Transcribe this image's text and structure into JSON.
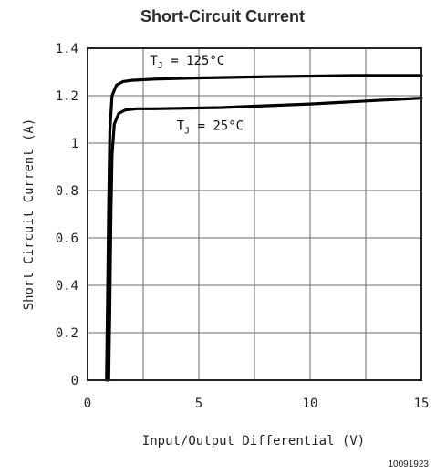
{
  "chart_data": {
    "type": "line",
    "title": "Short-Circuit Current",
    "xlabel": "Input/Output Differential (V)",
    "ylabel": "Short Circuit Current (A)",
    "xlim": [
      0,
      15
    ],
    "ylim": [
      0,
      1.4
    ],
    "x_ticks": [
      "0",
      "5",
      "10",
      "15"
    ],
    "y_ticks": [
      "0",
      "0.2",
      "0.4",
      "0.6",
      "0.8",
      "1",
      "1.2",
      "1.4"
    ],
    "grid": true,
    "figure_code": "10091923",
    "series": [
      {
        "label_main": "T",
        "label_sub": "J",
        "label_rest": " = 125°C",
        "x": [
          0.85,
          0.9,
          0.95,
          1.0,
          1.1,
          1.3,
          1.6,
          2.0,
          3.0,
          5.0,
          8.0,
          12.0,
          15.0
        ],
        "y": [
          0.0,
          0.35,
          0.75,
          1.05,
          1.2,
          1.245,
          1.26,
          1.265,
          1.27,
          1.275,
          1.28,
          1.285,
          1.285
        ]
      },
      {
        "label_main": "T",
        "label_sub": "J",
        "label_rest": " = 25°C",
        "x": [
          0.95,
          1.0,
          1.05,
          1.1,
          1.2,
          1.4,
          1.7,
          2.2,
          3.0,
          6.0,
          10.0,
          13.0,
          15.0
        ],
        "y": [
          0.0,
          0.3,
          0.7,
          0.95,
          1.08,
          1.125,
          1.14,
          1.145,
          1.145,
          1.15,
          1.165,
          1.18,
          1.19
        ]
      }
    ]
  }
}
